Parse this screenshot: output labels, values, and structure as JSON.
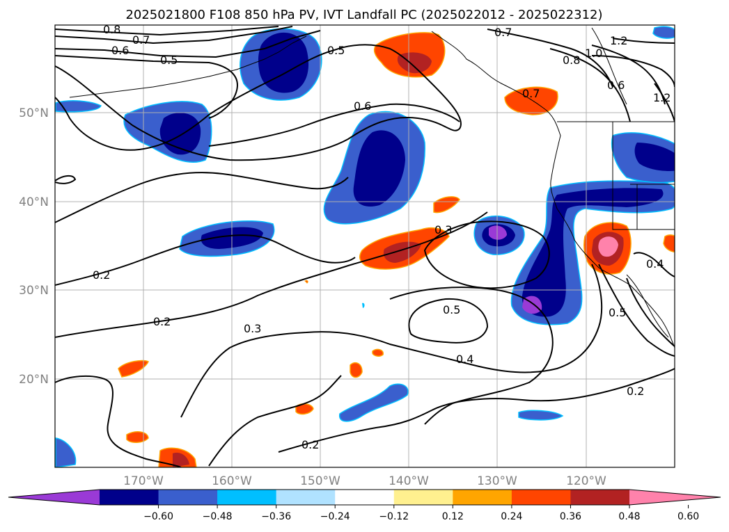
{
  "title": "2025021800 F108 850 hPa PV, IVT Landfall PC (2025022012 - 2025022312)",
  "map": {
    "lon_range": [
      -180,
      -110
    ],
    "lat_range": [
      10,
      60
    ],
    "lat_ticks": [
      {
        "value": 50,
        "label": "50°N"
      },
      {
        "value": 40,
        "label": "40°N"
      },
      {
        "value": 30,
        "label": "30°N"
      },
      {
        "value": 20,
        "label": "20°N"
      }
    ],
    "lon_ticks": [
      {
        "value": -170,
        "label": "170°W"
      },
      {
        "value": -160,
        "label": "160°W"
      },
      {
        "value": -150,
        "label": "150°W"
      },
      {
        "value": -140,
        "label": "140°W"
      },
      {
        "value": -130,
        "label": "130°W"
      },
      {
        "value": -120,
        "label": "120°W"
      }
    ],
    "gridlines": true,
    "contour_labels": [
      "0.8",
      "0.7",
      "0.6",
      "0.5",
      "0.5",
      "0.7",
      "1.2",
      "1.0",
      "0.8",
      "0.6",
      "1.2",
      "0.6",
      "0.7",
      "0.3",
      "0.2",
      "0.2",
      "0.3",
      "0.5",
      "0.4",
      "0.4",
      "0.5",
      "0.2",
      "0.2"
    ]
  },
  "colorbar": {
    "levels": [
      -0.72,
      -0.6,
      -0.48,
      -0.36,
      -0.24,
      -0.12,
      0.12,
      0.24,
      0.36,
      0.48,
      0.6,
      0.72
    ],
    "tick_labels": [
      "−0.60",
      "−0.48",
      "−0.36",
      "−0.24",
      "−0.12",
      "0.12",
      "0.24",
      "0.36",
      "0.48",
      "0.60"
    ],
    "colors": [
      "#9a3ad6",
      "#00008b",
      "#3a5fcd",
      "#00bfff",
      "#b0e2ff",
      "#ffffff",
      "#fff08f",
      "#ffa500",
      "#ff4500",
      "#b22222",
      "#ff82ab"
    ],
    "extend": "both"
  }
}
